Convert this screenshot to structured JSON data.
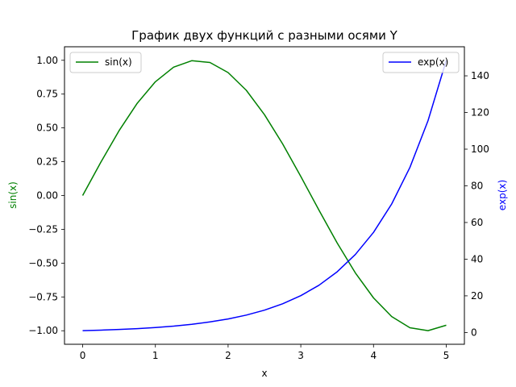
{
  "chart_data": {
    "type": "line",
    "title": "График двух функций с разными осями Y",
    "xlabel": "x",
    "xlim": [
      -0.25,
      5.25
    ],
    "xticks": [
      "0",
      "1",
      "2",
      "3",
      "4",
      "5"
    ],
    "grid": false,
    "y_left": {
      "label": "sin(x)",
      "color": "#008000",
      "ylim": [
        -1.1,
        1.1
      ],
      "ticks": [
        "−1.00",
        "−0.75",
        "−0.50",
        "−0.25",
        "0.00",
        "0.25",
        "0.50",
        "0.75",
        "1.00"
      ]
    },
    "y_right": {
      "label": "exp(x)",
      "color": "#0000ff",
      "ylim": [
        -6.42,
        155.85
      ],
      "ticks": [
        "0",
        "20",
        "40",
        "60",
        "80",
        "100",
        "120",
        "140"
      ]
    },
    "series": [
      {
        "name": "sin(x)",
        "axis": "left",
        "color": "#008000",
        "x": [
          0,
          0.25,
          0.5,
          0.75,
          1,
          1.25,
          1.5,
          1.75,
          2,
          2.25,
          2.5,
          2.75,
          3,
          3.25,
          3.5,
          3.75,
          4,
          4.25,
          4.5,
          4.75,
          5
        ],
        "values": [
          0,
          0.247,
          0.479,
          0.682,
          0.841,
          0.949,
          0.997,
          0.984,
          0.909,
          0.778,
          0.598,
          0.382,
          0.141,
          -0.108,
          -0.351,
          -0.572,
          -0.757,
          -0.895,
          -0.978,
          -0.999,
          -0.959
        ]
      },
      {
        "name": "exp(x)",
        "axis": "right",
        "color": "#0000ff",
        "x": [
          0,
          0.25,
          0.5,
          0.75,
          1,
          1.25,
          1.5,
          1.75,
          2,
          2.25,
          2.5,
          2.75,
          3,
          3.25,
          3.5,
          3.75,
          4,
          4.25,
          4.5,
          4.75,
          5
        ],
        "values": [
          1,
          1.28,
          1.65,
          2.12,
          2.72,
          3.49,
          4.48,
          5.75,
          7.39,
          9.49,
          12.18,
          15.64,
          20.09,
          25.79,
          33.12,
          42.52,
          54.6,
          70.11,
          90.02,
          115.58,
          148.41
        ]
      }
    ],
    "legends": [
      {
        "placement": "upper-left",
        "entries": [
          "sin(x)"
        ]
      },
      {
        "placement": "upper-right",
        "entries": [
          "exp(x)"
        ]
      }
    ]
  }
}
